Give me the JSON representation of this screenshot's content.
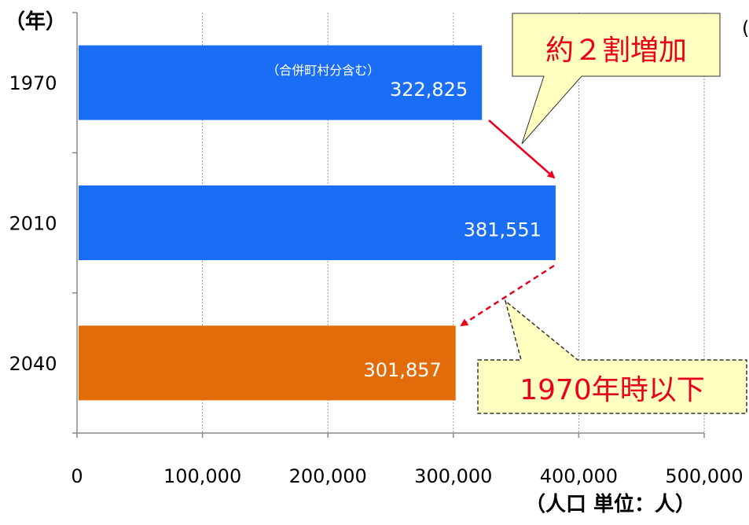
{
  "chart_data": {
    "type": "bar",
    "orientation": "horizontal",
    "categories": [
      "1970",
      "2010",
      "2040"
    ],
    "values": [
      322825,
      381551,
      301857
    ],
    "value_labels": [
      "322,825",
      "381,551",
      "301,857"
    ],
    "bar_colors": [
      "#1a6ef5",
      "#1a6ef5",
      "#e36c0a"
    ],
    "xlim": [
      0,
      500000
    ],
    "x_ticks": [
      0,
      100000,
      200000,
      300000,
      400000,
      500000
    ],
    "x_tick_labels": [
      "0",
      "100,000",
      "200,000",
      "300,000",
      "400,000",
      "500,000"
    ],
    "grid": "vertical dotted",
    "ylabel": "（年）",
    "xlabel": "（人口 単位：人）",
    "annotations": {
      "note_1970": "（合併町村分含む）",
      "callout_increase": "約２割増加",
      "callout_decrease": "1970年時以下",
      "stray_char": "("
    },
    "colors": {
      "callout_text": "#e8001c",
      "callout_fill": "#ffffc0",
      "arrow": "#e8001c"
    }
  }
}
